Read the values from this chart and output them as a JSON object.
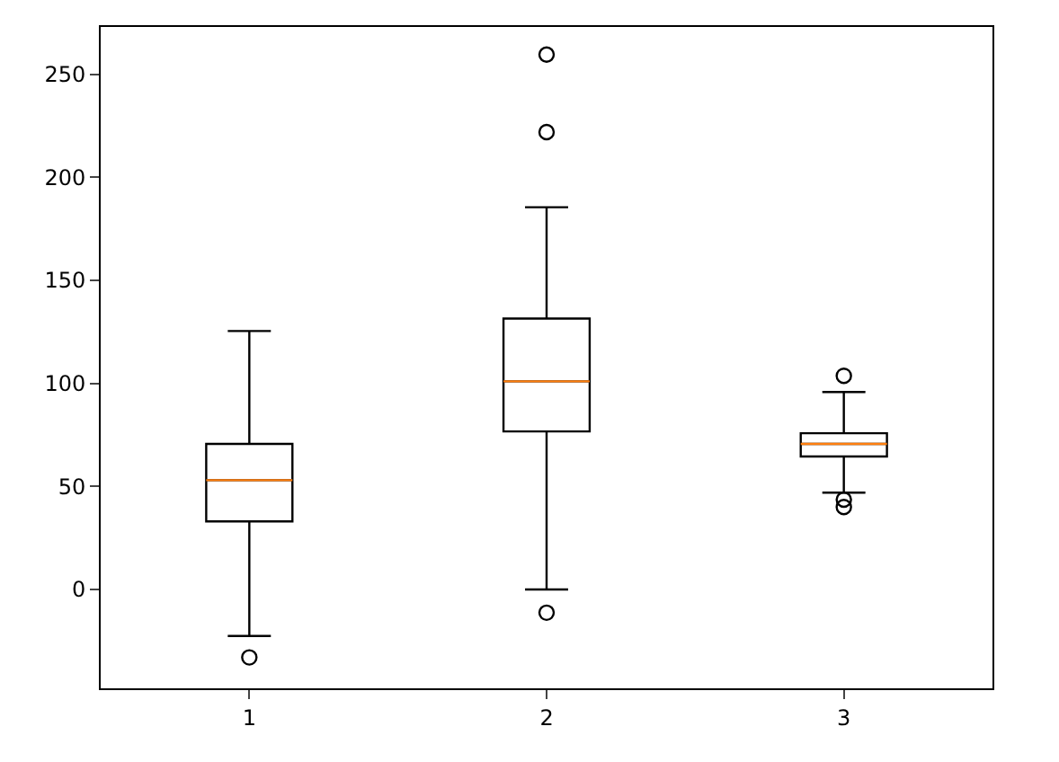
{
  "chart_data": {
    "type": "box",
    "categories": [
      "1",
      "2",
      "3"
    ],
    "boxes": [
      {
        "low": -22.6,
        "q1": 33,
        "median": 53,
        "q3": 70.6,
        "high": 125.4,
        "outliers": [
          -33
        ]
      },
      {
        "low": 0,
        "q1": 76.7,
        "median": 101,
        "q3": 131.5,
        "high": 185.5,
        "outliers": [
          259.6,
          222,
          -11.3
        ]
      },
      {
        "low": 47,
        "q1": 64.5,
        "median": 70.6,
        "q3": 75.8,
        "high": 95.8,
        "outliers": [
          103.7,
          43.6,
          40
        ]
      }
    ],
    "color": "#000000",
    "ylim": [
      -48,
      273
    ],
    "yticks": [
      0,
      50,
      100,
      150,
      200,
      250
    ],
    "marker": "circle"
  }
}
